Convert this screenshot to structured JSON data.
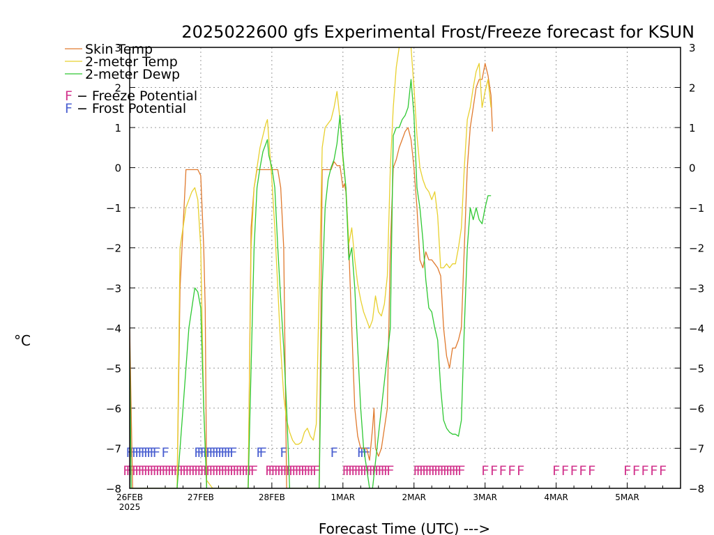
{
  "chart_data": {
    "type": "line",
    "title": "2025022600 gfs Experimental Frost/Freeze forecast for KSUN",
    "xlabel": "Forecast Time (UTC) --->",
    "ylabel": "°C",
    "ylim": [
      -8,
      3
    ],
    "xlim": [
      0,
      186
    ],
    "yticks": [
      3,
      2,
      1,
      0,
      -1,
      -2,
      -3,
      -4,
      -5,
      -6,
      -7,
      -8
    ],
    "ytick_labels": [
      "3",
      "2",
      "1",
      "0",
      "−1",
      "−2",
      "−3",
      "−4",
      "−5",
      "−6",
      "−7",
      "−8"
    ],
    "xticks": [
      {
        "label": "26FEB",
        "label2": "2025",
        "hour": 0
      },
      {
        "label": "27FEB",
        "hour": 24
      },
      {
        "label": "28FEB",
        "hour": 48
      },
      {
        "label": "1MAR",
        "hour": 72
      },
      {
        "label": "2MAR",
        "hour": 96
      },
      {
        "label": "3MAR",
        "hour": 120
      },
      {
        "label": "4MAR",
        "hour": 144
      },
      {
        "label": "5MAR",
        "hour": 168
      }
    ],
    "grid": true,
    "legend_position": "top-left",
    "series": [
      {
        "name": "Skin Temp",
        "color": "#e07a2e",
        "points": [
          [
            0,
            -4
          ],
          [
            1,
            -8
          ],
          [
            10,
            -8
          ],
          [
            16,
            -8
          ],
          [
            17,
            -3
          ],
          [
            18,
            -1.5
          ],
          [
            19,
            -0.05
          ],
          [
            23,
            -0.05
          ],
          [
            24,
            -0.2
          ],
          [
            25,
            -2
          ],
          [
            25.5,
            -3.5
          ],
          [
            26,
            -8
          ],
          [
            40,
            -8
          ],
          [
            41,
            -1.5
          ],
          [
            42,
            -0.5
          ],
          [
            43,
            -0.05
          ],
          [
            50,
            -0.05
          ],
          [
            51,
            -0.5
          ],
          [
            52,
            -2
          ],
          [
            52.5,
            -5
          ],
          [
            53,
            -8
          ],
          [
            64,
            -8
          ],
          [
            65,
            -0.05
          ],
          [
            68,
            -0.05
          ],
          [
            69,
            0.15
          ],
          [
            70,
            0.05
          ],
          [
            71,
            0.05
          ],
          [
            72,
            -0.5
          ],
          [
            72.5,
            -0.4
          ],
          [
            73,
            -0.6
          ],
          [
            74,
            -2
          ],
          [
            75,
            -4
          ],
          [
            76,
            -6
          ],
          [
            77,
            -6.7
          ],
          [
            78,
            -7
          ],
          [
            80,
            -7
          ],
          [
            81,
            -7.3
          ],
          [
            82,
            -6.5
          ],
          [
            82.5,
            -6
          ],
          [
            83,
            -7
          ],
          [
            84,
            -7.2
          ],
          [
            85,
            -7
          ],
          [
            86,
            -6.5
          ],
          [
            87,
            -6
          ],
          [
            88,
            -2
          ],
          [
            89,
            0
          ],
          [
            90,
            0.2
          ],
          [
            91,
            0.5
          ],
          [
            92,
            0.7
          ],
          [
            93,
            0.9
          ],
          [
            94,
            1
          ],
          [
            95,
            0.7
          ],
          [
            96,
            0
          ],
          [
            97,
            -1
          ],
          [
            98,
            -2.3
          ],
          [
            99,
            -2.5
          ],
          [
            100,
            -2.1
          ],
          [
            101,
            -2.3
          ],
          [
            102,
            -2.3
          ],
          [
            103,
            -2.4
          ],
          [
            104,
            -2.5
          ],
          [
            105,
            -2.7
          ],
          [
            106,
            -4
          ],
          [
            107,
            -4.7
          ],
          [
            108,
            -5
          ],
          [
            109,
            -4.5
          ],
          [
            110,
            -4.5
          ],
          [
            111,
            -4.3
          ],
          [
            112,
            -4
          ],
          [
            113,
            -2
          ],
          [
            114,
            0
          ],
          [
            115,
            1
          ],
          [
            116,
            1.5
          ],
          [
            117,
            2
          ],
          [
            118,
            2.2
          ],
          [
            119,
            2.2
          ],
          [
            120,
            2.6
          ],
          [
            121,
            2.3
          ],
          [
            122,
            1.8
          ],
          [
            122.5,
            0.9
          ]
        ]
      },
      {
        "name": "2-meter Temp",
        "color": "#e8d02e",
        "points": [
          [
            0,
            -8
          ],
          [
            16,
            -8
          ],
          [
            17,
            -2
          ],
          [
            18,
            -1.5
          ],
          [
            19,
            -1
          ],
          [
            20,
            -0.8
          ],
          [
            21,
            -0.6
          ],
          [
            22,
            -0.5
          ],
          [
            23,
            -0.8
          ],
          [
            24,
            -2
          ],
          [
            25,
            -6
          ],
          [
            26,
            -7.8
          ],
          [
            28,
            -8
          ],
          [
            30,
            -8
          ],
          [
            31,
            -8
          ],
          [
            40,
            -8
          ],
          [
            41,
            -2
          ],
          [
            42,
            -0.5
          ],
          [
            43,
            0
          ],
          [
            44,
            0.5
          ],
          [
            45,
            0.8
          ],
          [
            46,
            1.1
          ],
          [
            46.5,
            1.2
          ],
          [
            47,
            0.7
          ],
          [
            48,
            -0.3
          ],
          [
            49,
            -1.5
          ],
          [
            50,
            -3
          ],
          [
            51,
            -4.5
          ],
          [
            52,
            -5.7
          ],
          [
            53,
            -6.3
          ],
          [
            54,
            -6.6
          ],
          [
            55,
            -6.8
          ],
          [
            56,
            -6.9
          ],
          [
            57,
            -6.9
          ],
          [
            58,
            -6.85
          ],
          [
            59,
            -6.6
          ],
          [
            60,
            -6.5
          ],
          [
            61,
            -6.7
          ],
          [
            62,
            -6.8
          ],
          [
            63,
            -6.4
          ],
          [
            64,
            -3
          ],
          [
            65,
            0.5
          ],
          [
            66,
            1
          ],
          [
            67,
            1.1
          ],
          [
            68,
            1.2
          ],
          [
            69,
            1.5
          ],
          [
            70,
            1.9
          ],
          [
            71,
            1.2
          ],
          [
            72,
            0.2
          ],
          [
            73,
            -0.5
          ],
          [
            74,
            -1.9
          ],
          [
            75,
            -1.5
          ],
          [
            76,
            -2.3
          ],
          [
            77,
            -2.9
          ],
          [
            78,
            -3.3
          ],
          [
            79,
            -3.6
          ],
          [
            80,
            -3.8
          ],
          [
            81,
            -4
          ],
          [
            82,
            -3.8
          ],
          [
            83,
            -3.2
          ],
          [
            84,
            -3.6
          ],
          [
            85,
            -3.7
          ],
          [
            86,
            -3.4
          ],
          [
            87,
            -2.7
          ],
          [
            88,
            0
          ],
          [
            89,
            1.5
          ],
          [
            90,
            2.5
          ],
          [
            91,
            3
          ],
          [
            92,
            3.1
          ],
          [
            93,
            3.1
          ],
          [
            94,
            3.1
          ],
          [
            95,
            3
          ],
          [
            96,
            2
          ],
          [
            97,
            0.8
          ],
          [
            98,
            0
          ],
          [
            99,
            -0.3
          ],
          [
            100,
            -0.5
          ],
          [
            101,
            -0.6
          ],
          [
            102,
            -0.8
          ],
          [
            103,
            -0.6
          ],
          [
            104,
            -1.2
          ],
          [
            105,
            -2.5
          ],
          [
            106,
            -2.5
          ],
          [
            107,
            -2.4
          ],
          [
            108,
            -2.5
          ],
          [
            109,
            -2.4
          ],
          [
            110,
            -2.4
          ],
          [
            111,
            -2
          ],
          [
            112,
            -1.5
          ],
          [
            113,
            0
          ],
          [
            114,
            1.2
          ],
          [
            115,
            1.5
          ],
          [
            116,
            2
          ],
          [
            117,
            2.4
          ],
          [
            118,
            2.6
          ],
          [
            119,
            1.5
          ],
          [
            120,
            1.9
          ],
          [
            121,
            2.2
          ],
          [
            122,
            1.5
          ]
        ]
      },
      {
        "name": "2-meter Dewp",
        "color": "#2ec832",
        "points": [
          [
            0,
            -4.5
          ],
          [
            0.5,
            -8
          ],
          [
            16,
            -8
          ],
          [
            17,
            -7
          ],
          [
            18,
            -6
          ],
          [
            19,
            -5
          ],
          [
            20,
            -4
          ],
          [
            21,
            -3.5
          ],
          [
            22,
            -3
          ],
          [
            23,
            -3.1
          ],
          [
            24,
            -3.5
          ],
          [
            25,
            -6
          ],
          [
            26,
            -8
          ],
          [
            40,
            -8
          ],
          [
            41,
            -5
          ],
          [
            42,
            -2
          ],
          [
            43,
            -0.5
          ],
          [
            44,
            0
          ],
          [
            45,
            0.4
          ],
          [
            46,
            0.6
          ],
          [
            46.5,
            0.7
          ],
          [
            47,
            0.3
          ],
          [
            48,
            0
          ],
          [
            49,
            -0.5
          ],
          [
            50,
            -2
          ],
          [
            51,
            -3.3
          ],
          [
            52,
            -4.5
          ],
          [
            53,
            -6
          ],
          [
            54,
            -8
          ],
          [
            64,
            -8
          ],
          [
            65,
            -3
          ],
          [
            66,
            -1
          ],
          [
            67,
            -0.3
          ],
          [
            68,
            0
          ],
          [
            69,
            0.2
          ],
          [
            70,
            0.6
          ],
          [
            71,
            1.3
          ],
          [
            72,
            0.3
          ],
          [
            73,
            -0.5
          ],
          [
            74,
            -2.3
          ],
          [
            75,
            -2
          ],
          [
            76,
            -3
          ],
          [
            77,
            -4.5
          ],
          [
            78,
            -6
          ],
          [
            79,
            -7
          ],
          [
            80,
            -7.5
          ],
          [
            81,
            -8
          ],
          [
            82,
            -8
          ],
          [
            88,
            -4
          ],
          [
            89,
            0.8
          ],
          [
            90,
            1
          ],
          [
            91,
            1
          ],
          [
            92,
            1.2
          ],
          [
            93,
            1.3
          ],
          [
            94,
            1.5
          ],
          [
            95,
            2.2
          ],
          [
            96,
            1.3
          ],
          [
            97,
            -0.5
          ],
          [
            98,
            -1
          ],
          [
            99,
            -1.8
          ],
          [
            100,
            -2.8
          ],
          [
            101,
            -3.5
          ],
          [
            102,
            -3.6
          ],
          [
            103,
            -4
          ],
          [
            104,
            -4.3
          ],
          [
            105,
            -5.5
          ],
          [
            106,
            -6.3
          ],
          [
            107,
            -6.5
          ],
          [
            108,
            -6.6
          ],
          [
            109,
            -6.65
          ],
          [
            110,
            -6.65
          ],
          [
            111,
            -6.7
          ],
          [
            112,
            -6.3
          ],
          [
            113,
            -4
          ],
          [
            114,
            -2
          ],
          [
            115,
            -1
          ],
          [
            116,
            -1.3
          ],
          [
            117,
            -1
          ],
          [
            118,
            -1.3
          ],
          [
            119,
            -1.4
          ],
          [
            120,
            -1
          ],
          [
            121,
            -0.7
          ],
          [
            122,
            -0.7
          ]
        ]
      }
    ],
    "legend": {
      "series": [
        {
          "label": "Skin Temp",
          "color": "#e07a2e"
        },
        {
          "label": "2-meter Temp",
          "color": "#e8d02e"
        },
        {
          "label": "2-meter Dewp",
          "color": "#2ec832"
        }
      ],
      "potential": [
        {
          "mark": "F",
          "label": " − Freeze Potential",
          "color": "#d2338c"
        },
        {
          "mark": "F",
          "label": " − Frost Potential",
          "color": "#4a5fd0"
        }
      ]
    },
    "frost_marks": {
      "color": "#4a5fd0",
      "text": "F",
      "hours": [
        0,
        1,
        2,
        3,
        4,
        5,
        6,
        7,
        8,
        9,
        12,
        23,
        24,
        25,
        26,
        27,
        28,
        29,
        30,
        31,
        32,
        33,
        34,
        35,
        44,
        45,
        52,
        69,
        78,
        79,
        80
      ]
    },
    "freeze_marks": {
      "color": "#d2338c",
      "text": "F",
      "hours": [
        -1,
        0,
        1,
        2,
        3,
        4,
        5,
        6,
        7,
        8,
        9,
        10,
        11,
        12,
        13,
        14,
        15,
        16,
        17,
        18,
        19,
        20,
        21,
        22,
        23,
        24,
        25,
        26,
        27,
        28,
        29,
        30,
        31,
        32,
        33,
        34,
        35,
        36,
        37,
        38,
        39,
        40,
        41,
        42,
        47,
        48,
        49,
        50,
        51,
        52,
        53,
        54,
        55,
        56,
        57,
        58,
        59,
        60,
        61,
        62,
        63,
        73,
        74,
        75,
        76,
        77,
        78,
        79,
        80,
        81,
        82,
        83,
        84,
        85,
        86,
        87,
        88,
        97,
        98,
        99,
        100,
        101,
        102,
        103,
        104,
        105,
        106,
        107,
        108,
        109,
        110,
        111,
        112,
        120,
        123,
        126,
        129,
        132,
        144,
        147,
        150,
        153,
        156,
        168,
        171,
        174,
        177,
        180
      ]
    }
  }
}
